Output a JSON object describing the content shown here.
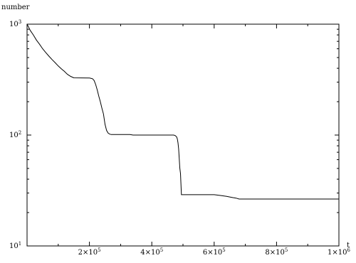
{
  "chart_data": {
    "type": "line",
    "title": "",
    "xlabel": "t",
    "ylabel": "number",
    "y_scale": "log",
    "xlim": [
      0,
      1000000
    ],
    "ylim": [
      10,
      1000
    ],
    "grid": false,
    "legend": "none",
    "x_ticks": [
      {
        "value": 200000,
        "mantissa": "2×10",
        "exp": "5"
      },
      {
        "value": 400000,
        "mantissa": "4×10",
        "exp": "5"
      },
      {
        "value": 600000,
        "mantissa": "6×10",
        "exp": "5"
      },
      {
        "value": 800000,
        "mantissa": "8×10",
        "exp": "5"
      },
      {
        "value": 1000000,
        "mantissa": "1×10",
        "exp": "6"
      }
    ],
    "y_ticks": [
      {
        "value": 10,
        "base": "10",
        "exp": "1"
      },
      {
        "value": 100,
        "base": "10",
        "exp": "2"
      },
      {
        "value": 1000,
        "base": "10",
        "exp": "3"
      }
    ],
    "series": [
      {
        "color": "#000000",
        "x": [
          0,
          5000,
          10000,
          20000,
          30000,
          40000,
          50000,
          60000,
          70000,
          80000,
          90000,
          100000,
          110000,
          120000,
          125000,
          130000,
          140000,
          150000,
          200000,
          210000,
          215000,
          220000,
          225000,
          230000,
          235000,
          240000,
          245000,
          250000,
          255000,
          260000,
          265000,
          270000,
          300000,
          330000,
          340000,
          400000,
          470000,
          475000,
          480000,
          482000,
          484000,
          486000,
          488000,
          490000,
          492000,
          495000,
          600000,
          620000,
          640000,
          660000,
          670000,
          680000,
          1000000
        ],
        "y": [
          1000,
          940,
          880,
          800,
          720,
          660,
          600,
          555,
          515,
          480,
          450,
          420,
          395,
          375,
          362,
          352,
          338,
          328,
          327,
          322,
          310,
          285,
          255,
          225,
          200,
          175,
          155,
          125,
          110,
          104,
          102,
          101,
          101,
          101,
          100,
          100,
          100,
          99,
          96,
          92,
          85,
          75,
          62,
          50,
          45,
          29,
          29,
          28.5,
          28,
          27.3,
          27,
          26.5,
          26.5
        ]
      }
    ]
  }
}
